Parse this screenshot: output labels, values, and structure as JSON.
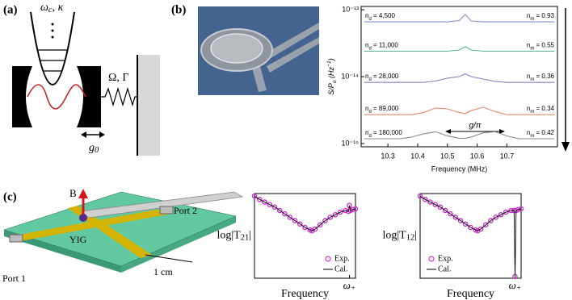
{
  "panels": {
    "a": "(a)",
    "b": "(b)",
    "c": "(c)"
  },
  "diagram_a": {
    "cavity_mode": "ωc, κ",
    "mechanics": "Ω, Γ",
    "coupling": "g0"
  },
  "diagram_c": {
    "field": "B",
    "port2": "Port 2",
    "port1": "Port 1",
    "sample": "YIG",
    "scale": "1 cm"
  },
  "chart_data": [
    {
      "type": "line",
      "log_y": true,
      "x_label": "Frequency (MHz)",
      "y_label": "S/Po (Hz−1)",
      "annotation": "g/π",
      "xlim": [
        10.21,
        10.87
      ],
      "ylim": [
        8.95e-16,
        1.12e-13
      ],
      "xticks": [
        10.3,
        10.4,
        10.5,
        10.6,
        10.7
      ],
      "yticks": [
        {
          "value": 1e-13,
          "label": "10⁻¹³"
        },
        {
          "value": 1e-14,
          "label": "10⁻¹⁴"
        },
        {
          "value": 1e-15,
          "label": "10⁻¹⁵"
        }
      ],
      "x": [
        10.22,
        10.26,
        10.3,
        10.34,
        10.38,
        10.42,
        10.46,
        10.5,
        10.54,
        10.56,
        10.58,
        10.62,
        10.66,
        10.7,
        10.74,
        10.78,
        10.82,
        10.86
      ],
      "series": [
        {
          "name": "nd = 4,500",
          "label": "nm = 0.93",
          "color": "#7f8fc8",
          "values": [
            6.6e-14,
            6.6e-14,
            6.6e-14,
            6.6e-14,
            6.6e-14,
            6.6e-14,
            6.6e-14,
            6.6e-14,
            6.9e-14,
            8.5e-14,
            6.8e-14,
            6.6e-14,
            6.6e-14,
            6.6e-14,
            6.6e-14,
            6.6e-14,
            6.6e-14,
            6.6e-14
          ]
        },
        {
          "name": "nd = 11,000",
          "label": "nm = 0.55",
          "color": "#5bb58a",
          "values": [
            2.4e-14,
            2.4e-14,
            2.4e-14,
            2.4e-14,
            2.4e-14,
            2.4e-14,
            2.4e-14,
            2.4e-14,
            2.5e-14,
            2.8e-14,
            2.5e-14,
            2.4e-14,
            2.4e-14,
            2.4e-14,
            2.4e-14,
            2.4e-14,
            2.4e-14,
            2.4e-14
          ]
        },
        {
          "name": "nd = 28,000",
          "label": "nm = 0.36",
          "color": "#8a7fc0",
          "values": [
            8.2e-15,
            8.2e-15,
            8.2e-15,
            8.2e-15,
            8.2e-15,
            8.2e-15,
            8.6e-15,
            9.5e-15,
            1e-14,
            1.1e-14,
            1e-14,
            9.2e-15,
            8.5e-15,
            8.2e-15,
            8.2e-15,
            8.2e-15,
            8.2e-15,
            8.2e-15
          ]
        },
        {
          "name": "nd = 89,000",
          "label": "nm = 0.34",
          "color": "#e0896a",
          "values": [
            2.7e-15,
            2.7e-15,
            2.7e-15,
            2.7e-15,
            2.7e-15,
            2.9e-15,
            3.4e-15,
            3.3e-15,
            2.9e-15,
            2.8e-15,
            3.1e-15,
            3.5e-15,
            3e-15,
            2.7e-15,
            2.7e-15,
            2.7e-15,
            2.7e-15,
            2.7e-15
          ]
        },
        {
          "name": "nd = 180,000",
          "label": "nm = 0.42",
          "color": "#888888",
          "values": [
            1.18e-15,
            1.18e-15,
            1.18e-15,
            1.18e-15,
            1.25e-15,
            1.4e-15,
            1.5e-15,
            1.3e-15,
            1.2e-15,
            1.2e-15,
            1.25e-15,
            1.45e-15,
            1.5e-15,
            1.3e-15,
            1.18e-15,
            1.18e-15,
            1.18e-15,
            1.18e-15
          ]
        }
      ]
    },
    {
      "type": "line",
      "x_label": "Frequency",
      "y_label": "log|T21|",
      "legend": "lower right",
      "xlim": [
        0,
        1
      ],
      "ylim": [
        0,
        1
      ],
      "xticks": [
        {
          "value": 0.94,
          "label": "ω+"
        }
      ],
      "x": [
        0,
        0.05,
        0.1,
        0.15,
        0.2,
        0.25,
        0.3,
        0.35,
        0.4,
        0.45,
        0.5,
        0.55,
        0.57,
        0.6,
        0.65,
        0.7,
        0.75,
        0.8,
        0.85,
        0.9,
        0.93,
        0.94,
        0.95,
        0.97,
        1
      ],
      "series": [
        {
          "name": "Exp.",
          "style": "markers",
          "color": "#cc33cc",
          "values": [
            0.97,
            0.93,
            0.9,
            0.87,
            0.84,
            0.8,
            0.76,
            0.72,
            0.68,
            0.64,
            0.6,
            0.57,
            0.56,
            0.58,
            0.63,
            0.68,
            0.72,
            0.75,
            0.78,
            0.8,
            0.79,
            0.86,
            0.8,
            0.81,
            0.82
          ]
        },
        {
          "name": "Cal.",
          "style": "line",
          "color": "#000000",
          "values": [
            0.97,
            0.93,
            0.9,
            0.87,
            0.84,
            0.8,
            0.76,
            0.72,
            0.68,
            0.64,
            0.6,
            0.57,
            0.56,
            0.58,
            0.63,
            0.68,
            0.72,
            0.75,
            0.78,
            0.8,
            0.79,
            0.86,
            0.8,
            0.81,
            0.82
          ]
        }
      ]
    },
    {
      "type": "line",
      "x_label": "Frequency",
      "y_label": "log|T12|",
      "legend": "lower left",
      "xlim": [
        0,
        1
      ],
      "ylim": [
        0,
        1
      ],
      "xticks": [
        {
          "value": 0.94,
          "label": "ω+"
        }
      ],
      "x": [
        0,
        0.05,
        0.1,
        0.15,
        0.2,
        0.25,
        0.3,
        0.35,
        0.4,
        0.45,
        0.5,
        0.55,
        0.57,
        0.6,
        0.65,
        0.7,
        0.75,
        0.8,
        0.85,
        0.9,
        0.93,
        0.94,
        0.95,
        0.97,
        1
      ],
      "series": [
        {
          "name": "Exp.",
          "style": "markers",
          "color": "#cc33cc",
          "values": [
            0.97,
            0.93,
            0.9,
            0.87,
            0.84,
            0.8,
            0.76,
            0.72,
            0.68,
            0.64,
            0.6,
            0.57,
            0.56,
            0.58,
            0.63,
            0.68,
            0.72,
            0.75,
            0.78,
            0.8,
            0.8,
            0.02,
            0.8,
            0.81,
            0.82
          ]
        },
        {
          "name": "Cal.",
          "style": "line",
          "color": "#000000",
          "values": [
            0.97,
            0.93,
            0.9,
            0.87,
            0.84,
            0.8,
            0.76,
            0.72,
            0.68,
            0.64,
            0.6,
            0.57,
            0.56,
            0.58,
            0.63,
            0.68,
            0.72,
            0.75,
            0.78,
            0.8,
            0.8,
            0.02,
            0.8,
            0.81,
            0.82
          ]
        }
      ]
    }
  ]
}
